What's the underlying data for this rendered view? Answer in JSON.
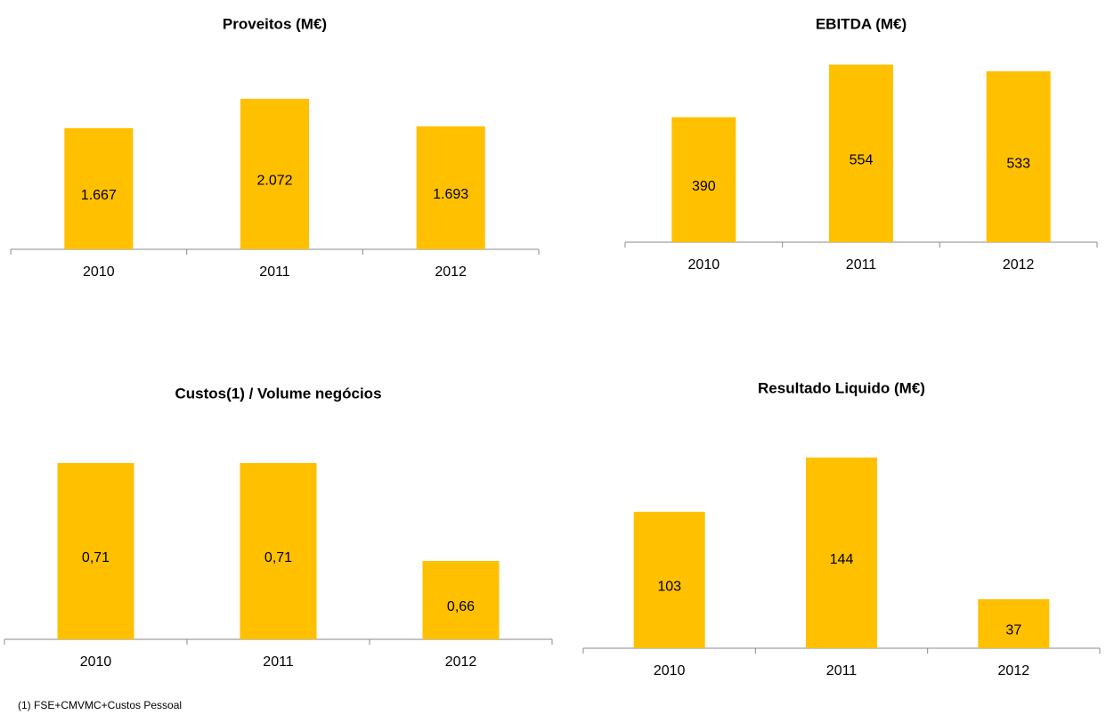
{
  "chart_data": [
    {
      "type": "bar",
      "title": "Proveitos (M€)",
      "categories": [
        "2010",
        "2011",
        "2012"
      ],
      "values": [
        1667,
        2072,
        1693
      ],
      "value_labels": [
        "1.667",
        "2.072",
        "1.693"
      ],
      "color": "#FFC000",
      "ylim": [
        0,
        2500
      ]
    },
    {
      "type": "bar",
      "title": "EBITDA (M€)",
      "categories": [
        "2010",
        "2011",
        "2012"
      ],
      "values": [
        390,
        554,
        533
      ],
      "color": "#FFC000",
      "ylim": [
        0,
        600
      ]
    },
    {
      "type": "bar",
      "title": "Custos(1) / Volume negócios",
      "categories": [
        "2010",
        "2011",
        "2012"
      ],
      "values": [
        0.71,
        0.71,
        0.66
      ],
      "value_labels": [
        "0,71",
        "0,71",
        "0,66"
      ],
      "color": "#FFC000",
      "ylim": [
        0.62,
        0.72
      ]
    },
    {
      "type": "bar",
      "title": "Resultado Liquido (M€)",
      "categories": [
        "2010",
        "2011",
        "2012"
      ],
      "values": [
        103,
        144,
        37
      ],
      "color": "#FFC000",
      "ylim": [
        0,
        160
      ]
    }
  ],
  "footnote": "(1) FSE+CMVMC+Custos Pessoal"
}
